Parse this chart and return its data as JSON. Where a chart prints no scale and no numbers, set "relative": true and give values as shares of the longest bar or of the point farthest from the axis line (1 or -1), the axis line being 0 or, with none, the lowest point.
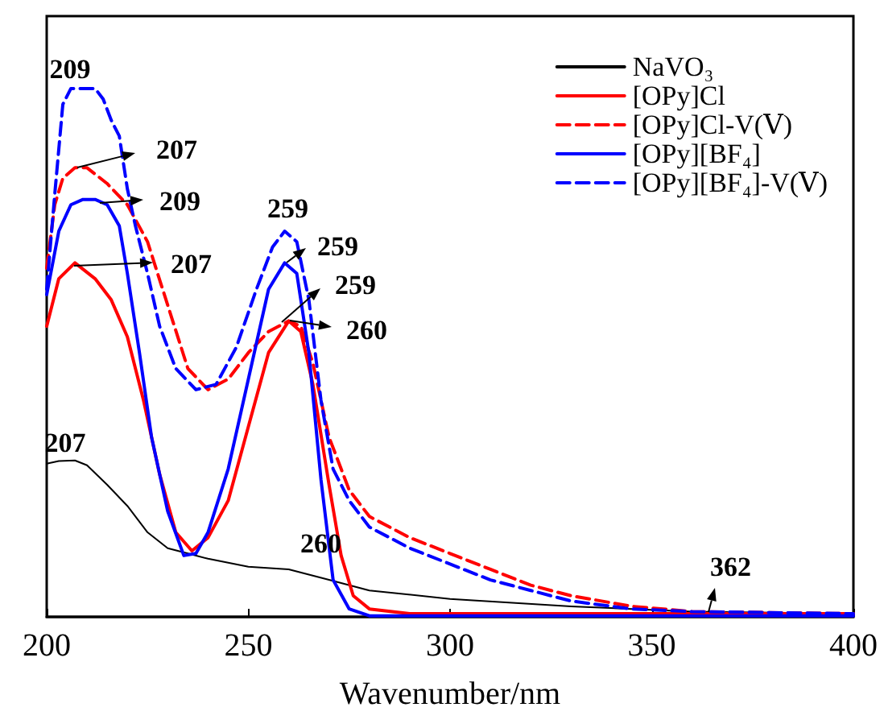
{
  "chart_data": {
    "type": "line",
    "xlabel": "Wavenumber/nm",
    "relative": true,
    "xlim": [
      200,
      400
    ],
    "xticks": [
      200,
      250,
      300,
      350,
      400
    ],
    "grid": false,
    "legend": "top right",
    "marker": "none",
    "line_style": "solid",
    "series": [
      {
        "name": "NaVO₃",
        "color": "#000000",
        "x": [
          200,
          203,
          207,
          210,
          215,
          220,
          225,
          230,
          235,
          240,
          250,
          260,
          270,
          280,
          300,
          330,
          360,
          400
        ],
        "values": [
          0.29,
          0.295,
          0.296,
          0.287,
          0.25,
          0.21,
          0.16,
          0.13,
          0.12,
          0.11,
          0.095,
          0.09,
          0.07,
          0.05,
          0.034,
          0.02,
          0.01,
          0.006
        ]
      },
      {
        "name": "[OPy]Cl",
        "color": "#ff0000",
        "x": [
          200,
          203,
          207,
          212,
          216,
          220,
          224,
          228,
          232,
          236,
          240,
          245,
          250,
          255,
          260,
          263,
          266,
          270,
          273,
          276,
          280,
          290,
          400
        ],
        "values": [
          0.55,
          0.64,
          0.67,
          0.64,
          0.6,
          0.53,
          0.41,
          0.27,
          0.16,
          0.125,
          0.15,
          0.22,
          0.36,
          0.5,
          0.56,
          0.54,
          0.44,
          0.25,
          0.116,
          0.04,
          0.015,
          0.006,
          0.006
        ]
      },
      {
        "name": "[OPy]Cl-V(Ⅴ)",
        "color": "#ff0000",
        "line_style": "dashed",
        "x": [
          200,
          202,
          204,
          207,
          210,
          215,
          220,
          225,
          230,
          235,
          240,
          245,
          250,
          255,
          260,
          263,
          266,
          270,
          275,
          280,
          290,
          300,
          310,
          320,
          330,
          345,
          360,
          400
        ],
        "values": [
          0.66,
          0.78,
          0.83,
          0.85,
          0.85,
          0.82,
          0.78,
          0.71,
          0.59,
          0.47,
          0.43,
          0.45,
          0.5,
          0.54,
          0.56,
          0.55,
          0.48,
          0.34,
          0.24,
          0.19,
          0.15,
          0.12,
          0.09,
          0.06,
          0.04,
          0.02,
          0.01,
          0.006
        ]
      },
      {
        "name": "[OPy][BF₄]",
        "color": "#0000ff",
        "x": [
          200,
          203,
          206,
          209,
          212,
          215,
          218,
          220,
          223,
          226,
          230,
          234,
          237,
          240,
          245,
          250,
          255,
          259,
          262,
          265,
          268,
          271,
          275,
          280,
          400
        ],
        "values": [
          0.61,
          0.73,
          0.78,
          0.79,
          0.79,
          0.78,
          0.74,
          0.65,
          0.5,
          0.34,
          0.2,
          0.116,
          0.12,
          0.16,
          0.28,
          0.45,
          0.62,
          0.67,
          0.65,
          0.5,
          0.26,
          0.07,
          0.015,
          0.002,
          0.002
        ]
      },
      {
        "name": "[OPy][BF₄]-V(Ⅴ)",
        "color": "#0000ff",
        "line_style": "dashed",
        "x": [
          200,
          202,
          204,
          206,
          209,
          212,
          214,
          216,
          218,
          220,
          222,
          225,
          228,
          232,
          237,
          242,
          247,
          252,
          256,
          259,
          262,
          265,
          268,
          271,
          275,
          280,
          290,
          300,
          310,
          320,
          330,
          345,
          360,
          400
        ],
        "values": [
          0.62,
          0.8,
          0.97,
          1.0,
          1.0,
          1.0,
          0.98,
          0.94,
          0.91,
          0.81,
          0.74,
          0.65,
          0.55,
          0.47,
          0.43,
          0.44,
          0.51,
          0.62,
          0.7,
          0.73,
          0.71,
          0.6,
          0.41,
          0.28,
          0.22,
          0.17,
          0.13,
          0.1,
          0.07,
          0.05,
          0.03,
          0.015,
          0.01,
          0.006
        ]
      }
    ],
    "annotations": [
      {
        "text": "209",
        "x": 209,
        "y": 1.0
      },
      "207",
      "209",
      "207",
      {
        "text": "259",
        "x": 259,
        "y": 0.73
      },
      "259",
      "259",
      "260",
      {
        "text": "207",
        "x": 207,
        "y": 0.296
      },
      {
        "text": "260",
        "x": 260,
        "y": 0.09
      },
      "362"
    ]
  }
}
